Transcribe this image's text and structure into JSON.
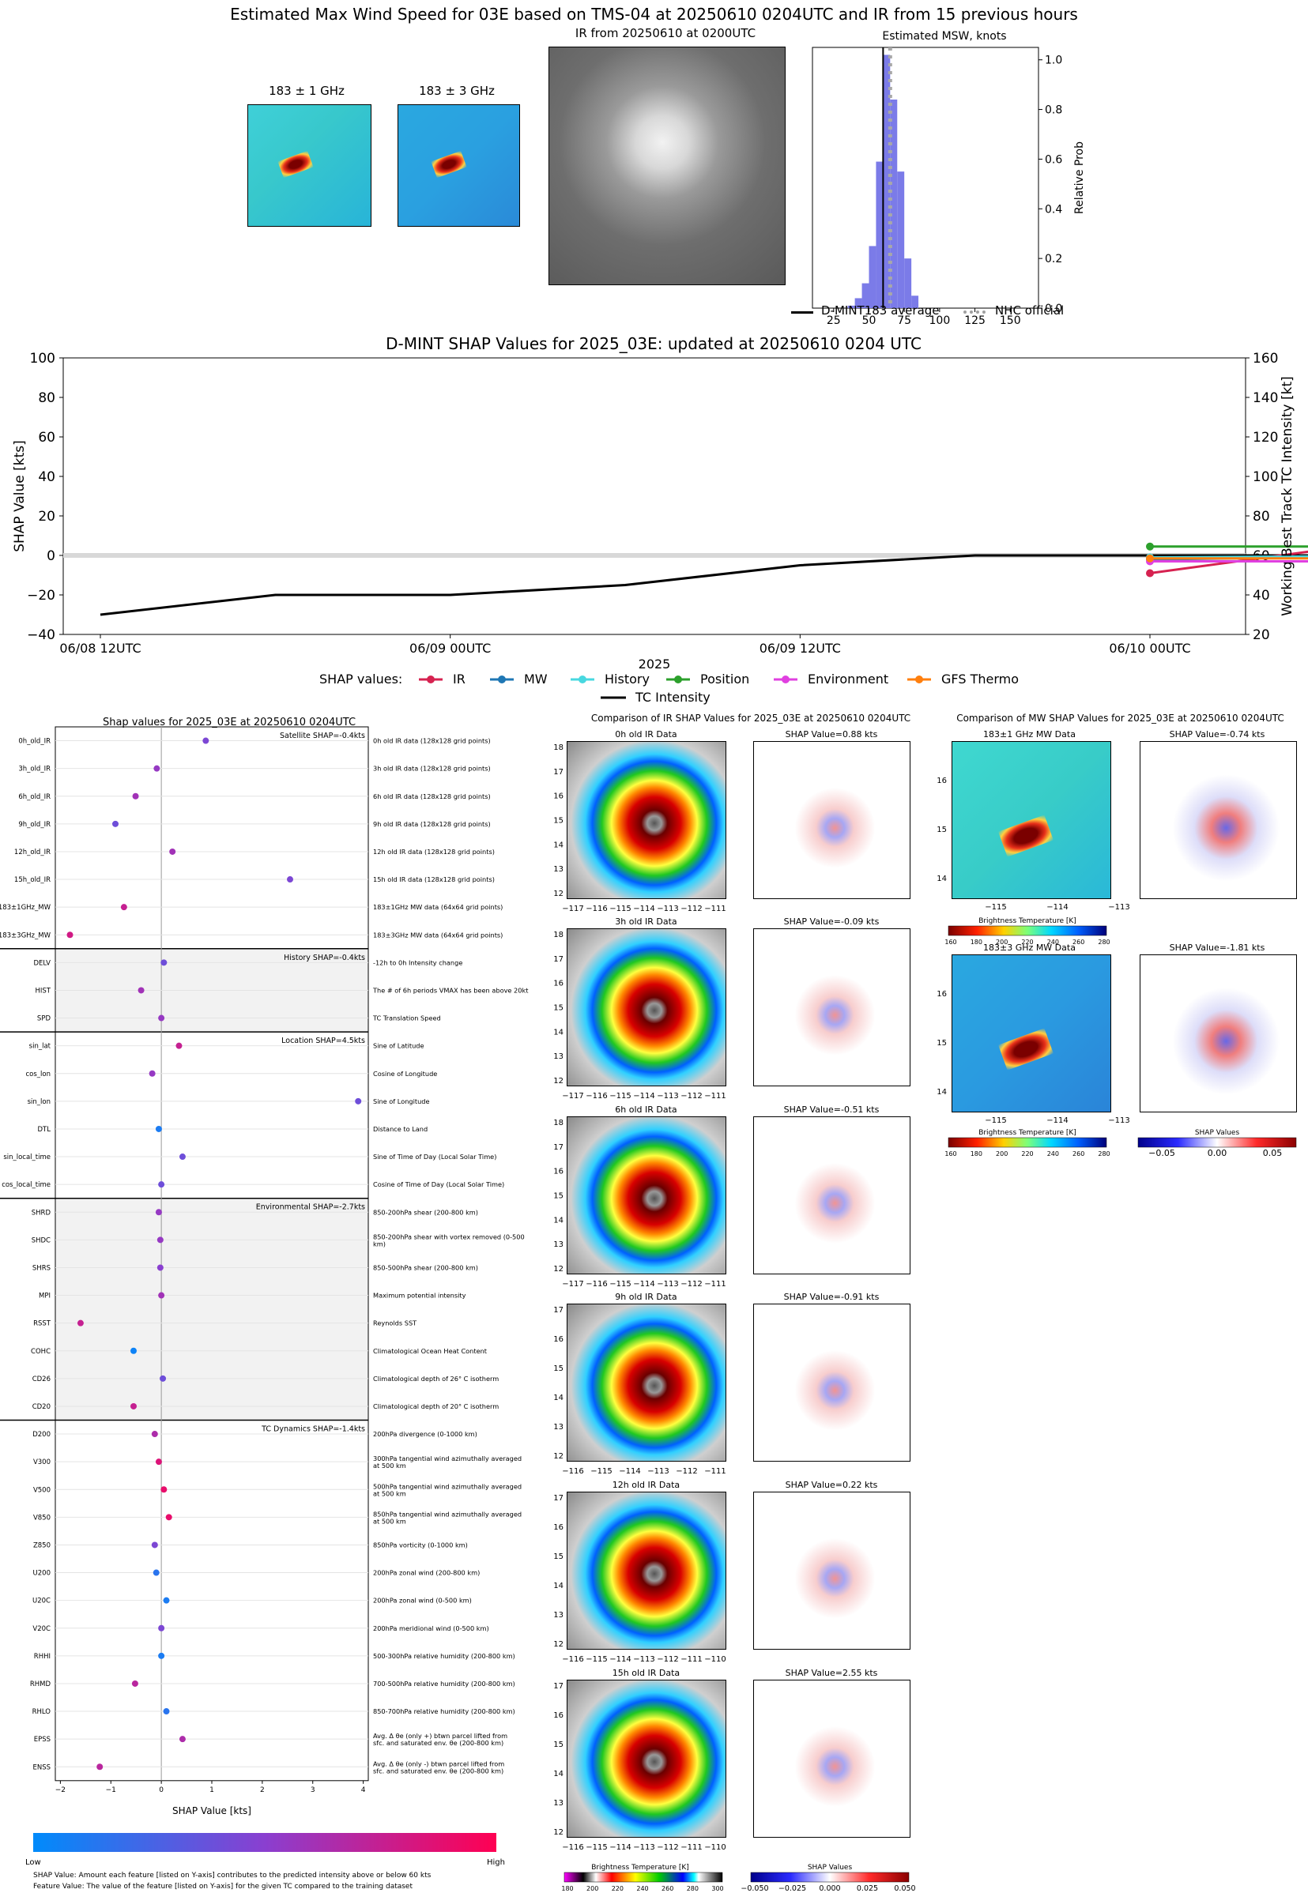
{
  "header": {
    "title": "Estimated Max Wind Speed for 03E based on TMS-04 at 20250610 0204UTC and IR from 15 previous hours",
    "mw1_title": "183 ± 1 GHz",
    "mw3_title": "183 ± 3 GHz",
    "ir_title": "IR from 20250610 at 0200UTC",
    "hist_title": "Estimated MSW, knots",
    "hist_ylabel": "Relative Prob",
    "legend_dmint": "D-MINT183 average",
    "legend_nhc": "NHC official"
  },
  "shap_time": {
    "title": "D-MINT SHAP Values for 2025_03E: updated at 20250610 0204 UTC",
    "ylabel_left": "SHAP Value [kts]",
    "ylabel_right": "Working Best Track TC Intensity [kt]",
    "xlabel": "2025",
    "legend_title": "SHAP values:",
    "legend_ir": "IR",
    "legend_mw": "MW",
    "legend_history": "History",
    "legend_position": "Position",
    "legend_env": "Environment",
    "legend_gfs": "GFS Thermo",
    "legend_tc": "TC Intensity"
  },
  "feature_panel": {
    "title": "Shap values for 2025_03E at 20250610 0204UTC",
    "xlabel": "SHAP Value [kts]",
    "groups": [
      "Satellite SHAP=-0.4kts",
      "History SHAP=-0.4kts",
      "Location SHAP=4.5kts",
      "Environmental SHAP=-2.7kts",
      "TC Dynamics SHAP=-1.4kts"
    ],
    "colorbar_low": "Low",
    "colorbar_high": "High",
    "footnote1": "SHAP Value: Amount each feature [listed on Y-axis] contributes to the predicted intensity above or below 60 kts",
    "footnote2": "Feature Value: The value of the feature [listed on Y-axis] for the given TC compared to the training dataset"
  },
  "ir_compare": {
    "title": "Comparison of IR SHAP Values for 2025_03E at 20250610 0204UTC",
    "cbar_label": "Brightness Temperature [K]",
    "shap_cbar_label": "SHAP Values",
    "cbar_ticks": [
      "180",
      "200",
      "220",
      "240",
      "260",
      "280",
      "300"
    ],
    "shap_cbar_ticks": [
      "−0.050",
      "−0.025",
      "0.000",
      "0.025",
      "0.050"
    ],
    "rows": [
      {
        "title": "0h old IR Data",
        "shap": "SHAP Value=0.88 kts",
        "yt": [
          "18",
          "17",
          "16",
          "15",
          "14",
          "13",
          "12"
        ],
        "xt": [
          "−117",
          "−116",
          "−115",
          "−114",
          "−113",
          "−112",
          "−111"
        ]
      },
      {
        "title": "3h old IR Data",
        "shap": "SHAP Value=-0.09 kts",
        "yt": [
          "18",
          "17",
          "16",
          "15",
          "14",
          "13",
          "12"
        ],
        "xt": [
          "−117",
          "−116",
          "−115",
          "−114",
          "−113",
          "−112",
          "−111"
        ]
      },
      {
        "title": "6h old IR Data",
        "shap": "SHAP Value=-0.51 kts",
        "yt": [
          "18",
          "17",
          "16",
          "15",
          "14",
          "13",
          "12"
        ],
        "xt": [
          "−117",
          "−116",
          "−115",
          "−114",
          "−113",
          "−112",
          "−111"
        ]
      },
      {
        "title": "9h old IR Data",
        "shap": "SHAP Value=-0.91 kts",
        "yt": [
          "17",
          "16",
          "15",
          "14",
          "13",
          "12"
        ],
        "xt": [
          "−116",
          "−115",
          "−114",
          "−113",
          "−112",
          "−111"
        ]
      },
      {
        "title": "12h old IR Data",
        "shap": "SHAP Value=0.22 kts",
        "yt": [
          "17",
          "16",
          "15",
          "14",
          "13",
          "12"
        ],
        "xt": [
          "−116",
          "−115",
          "−114",
          "−113",
          "−112",
          "−111",
          "−110"
        ]
      },
      {
        "title": "15h old IR Data",
        "shap": "SHAP Value=2.55 kts",
        "yt": [
          "17",
          "16",
          "15",
          "14",
          "13",
          "12"
        ],
        "xt": [
          "−116",
          "−115",
          "−114",
          "−113",
          "−112",
          "−111",
          "−110"
        ]
      }
    ]
  },
  "mw_compare": {
    "title": "Comparison of MW SHAP Values for 2025_03E at 20250610 0204UTC",
    "cbar_label": "Brightness Temperature [K]",
    "shap_cbar_label": "SHAP Values",
    "cbar_ticks": [
      "160",
      "180",
      "200",
      "220",
      "240",
      "260",
      "280"
    ],
    "shap_cbar_ticks": [
      "−0.05",
      "0.00",
      "0.05"
    ],
    "rows": [
      {
        "title": "183±1 GHz MW Data",
        "shap": "SHAP Value=-0.74 kts",
        "yt": [
          "16",
          "15",
          "14"
        ],
        "xt": [
          "−115",
          "−114",
          "−113"
        ]
      },
      {
        "title": "183±3 GHz MW Data",
        "shap": "SHAP Value=-1.81 kts",
        "yt": [
          "16",
          "15",
          "14"
        ],
        "xt": [
          "−115",
          "−114",
          "−113"
        ]
      }
    ]
  },
  "chart_data": [
    {
      "type": "bar",
      "title": "Estimated MSW, knots",
      "xlabel": "",
      "ylabel": "Relative Prob",
      "xlim": [
        10,
        170
      ],
      "ylim": [
        0,
        1.05
      ],
      "xticks": [
        25,
        50,
        75,
        100,
        125,
        150
      ],
      "yticks": [
        0.0,
        0.2,
        0.4,
        0.6,
        0.8,
        1.0
      ],
      "bin_centers": [
        37.5,
        42.5,
        47.5,
        52.5,
        57.5,
        62.5,
        67.5,
        72.5,
        77.5,
        82.5
      ],
      "values": [
        0.01,
        0.04,
        0.1,
        0.25,
        0.59,
        1.02,
        0.84,
        0.55,
        0.2,
        0.05
      ],
      "dmint_average": 60,
      "nhc_official": 65
    },
    {
      "type": "line",
      "title": "D-MINT SHAP Values for 2025_03E: updated at 20250610 0204 UTC",
      "xlabel": "2025",
      "ylabel": "SHAP Value [kts]",
      "ylabel_right": "Working Best Track TC Intensity [kt]",
      "ylim": [
        -40,
        100
      ],
      "ylim_right": [
        20,
        160
      ],
      "xticks": [
        "06/08 12UTC",
        "06/09 00UTC",
        "06/09 12UTC",
        "06/10 00UTC"
      ],
      "x_hours": [
        0,
        6,
        12,
        18,
        24,
        30,
        36,
        42
      ],
      "tc_intensity": [
        30,
        40,
        40,
        45,
        55,
        60,
        60,
        60
      ],
      "series": [
        {
          "name": "IR",
          "color": "#d62250",
          "x_hours": [
            36,
            42
          ],
          "values": [
            -9,
            3
          ]
        },
        {
          "name": "MW",
          "color": "#1f77b4",
          "x_hours": [
            36,
            42
          ],
          "values": [
            -2,
            -1
          ]
        },
        {
          "name": "History",
          "color": "#48d8e0",
          "x_hours": [
            36,
            42
          ],
          "values": [
            -1,
            -0.5
          ]
        },
        {
          "name": "Position",
          "color": "#2ca02c",
          "x_hours": [
            36,
            42
          ],
          "values": [
            4.5,
            4.5
          ]
        },
        {
          "name": "Environment",
          "color": "#e040e0",
          "x_hours": [
            36,
            42
          ],
          "values": [
            -3,
            -3
          ]
        },
        {
          "name": "GFS Thermo",
          "color": "#ff7f0e",
          "x_hours": [
            36,
            42
          ],
          "values": [
            -1.5,
            -1.5
          ]
        }
      ]
    },
    {
      "type": "scatter",
      "title": "Shap values for 2025_03E at 20250610 0204UTC",
      "xlabel": "SHAP Value [kts]",
      "xlim": [
        -2.1,
        4.1
      ],
      "xticks": [
        -2,
        -1,
        0,
        1,
        2,
        3,
        4
      ],
      "features": [
        {
          "name": "0h_old_IR",
          "desc": "0h old IR data (128x128 grid points)",
          "shap": 0.88,
          "fv": 0.45
        },
        {
          "name": "3h_old_IR",
          "desc": "3h old IR data (128x128 grid points)",
          "shap": -0.09,
          "fv": 0.55
        },
        {
          "name": "6h_old_IR",
          "desc": "6h old IR data (128x128 grid points)",
          "shap": -0.51,
          "fv": 0.6
        },
        {
          "name": "9h_old_IR",
          "desc": "9h old IR data (128x128 grid points)",
          "shap": -0.91,
          "fv": 0.4
        },
        {
          "name": "12h_old_IR",
          "desc": "12h old IR data (128x128 grid points)",
          "shap": 0.22,
          "fv": 0.6
        },
        {
          "name": "15h_old_IR",
          "desc": "15h old IR data (128x128 grid points)",
          "shap": 2.55,
          "fv": 0.45
        },
        {
          "name": "183±1GHz_MW",
          "desc": "183±1GHz MW data (64x64 grid points)",
          "shap": -0.74,
          "fv": 0.75
        },
        {
          "name": "183±3GHz_MW",
          "desc": "183±3GHz MW data (64x64 grid points)",
          "shap": -1.81,
          "fv": 0.8
        },
        {
          "name": "DELV",
          "desc": "-12h to 0h Intensity change",
          "shap": 0.05,
          "fv": 0.4
        },
        {
          "name": "HIST",
          "desc": "The # of 6h periods VMAX has been above 20kt",
          "shap": -0.4,
          "fv": 0.6
        },
        {
          "name": "SPD",
          "desc": "TC Translation Speed",
          "shap": 0.0,
          "fv": 0.55
        },
        {
          "name": "sin_lat",
          "desc": "Sine of Latitude",
          "shap": 0.35,
          "fv": 0.75
        },
        {
          "name": "cos_lon",
          "desc": "Cosine of Longitude",
          "shap": -0.18,
          "fv": 0.55
        },
        {
          "name": "sin_lon",
          "desc": "Sine of Longitude",
          "shap": 3.9,
          "fv": 0.4
        },
        {
          "name": "DTL",
          "desc": "Distance to Land",
          "shap": -0.05,
          "fv": 0.1
        },
        {
          "name": "sin_local_time",
          "desc": "Sine of Time of Day (Local Solar Time)",
          "shap": 0.42,
          "fv": 0.4
        },
        {
          "name": "cos_local_time",
          "desc": "Cosine of Time of Day (Local Solar Time)",
          "shap": 0.0,
          "fv": 0.4
        },
        {
          "name": "SHRD",
          "desc": "850-200hPa shear (200-800 km)",
          "shap": -0.05,
          "fv": 0.55
        },
        {
          "name": "SHDC",
          "desc": "850-200hPa shear with vortex removed (0-500 km)",
          "shap": -0.02,
          "fv": 0.55
        },
        {
          "name": "SHRS",
          "desc": "850-500hPa shear (200-800 km)",
          "shap": -0.02,
          "fv": 0.5
        },
        {
          "name": "MPI",
          "desc": "Maximum potential intensity",
          "shap": 0.0,
          "fv": 0.6
        },
        {
          "name": "RSST",
          "desc": "Reynolds SST",
          "shap": -1.6,
          "fv": 0.75
        },
        {
          "name": "COHC",
          "desc": "Climatological Ocean Heat Content",
          "shap": -0.55,
          "fv": 0.05
        },
        {
          "name": "CD26",
          "desc": "Climatological depth of 26° C isotherm",
          "shap": 0.03,
          "fv": 0.4
        },
        {
          "name": "CD20",
          "desc": "Climatological depth of 20° C isotherm",
          "shap": -0.55,
          "fv": 0.75
        },
        {
          "name": "D200",
          "desc": "200hPa divergence (0-1000 km)",
          "shap": -0.13,
          "fv": 0.65
        },
        {
          "name": "V300",
          "desc": "300hPa tangential wind azimuthally averaged at 500 km",
          "shap": -0.05,
          "fv": 0.85
        },
        {
          "name": "V500",
          "desc": "500hPa tangential wind azimuthally averaged at 500 km",
          "shap": 0.05,
          "fv": 0.9
        },
        {
          "name": "V850",
          "desc": "850hPa tangential wind azimuthally averaged at 500 km",
          "shap": 0.15,
          "fv": 0.9
        },
        {
          "name": "Z850",
          "desc": "850hPa vorticity (0-1000 km)",
          "shap": -0.13,
          "fv": 0.45
        },
        {
          "name": "U200",
          "desc": "200hPa zonal wind (200-800 km)",
          "shap": -0.1,
          "fv": 0.15
        },
        {
          "name": "U20C",
          "desc": "200hPa zonal wind (0-500 km)",
          "shap": 0.1,
          "fv": 0.1
        },
        {
          "name": "V20C",
          "desc": "200hPa meridional wind (0-500 km)",
          "shap": 0.0,
          "fv": 0.45
        },
        {
          "name": "RHHI",
          "desc": "500-300hPa relative humidity (200-800 km)",
          "shap": 0.0,
          "fv": 0.1
        },
        {
          "name": "RHMD",
          "desc": "700-500hPa relative humidity (200-800 km)",
          "shap": -0.52,
          "fv": 0.7
        },
        {
          "name": "RHLO",
          "desc": "850-700hPa relative humidity (200-800 km)",
          "shap": 0.1,
          "fv": 0.15
        },
        {
          "name": "EPSS",
          "desc": "Avg. Δ θe (only +) btwn parcel lifted from sfc. and saturated env. θe (200-800 km)",
          "shap": 0.42,
          "fv": 0.65
        },
        {
          "name": "ENSS",
          "desc": "Avg. Δ θe (only -) btwn parcel lifted from sfc. and saturated env. θe (200-800 km)",
          "shap": -1.22,
          "fv": 0.7
        }
      ]
    }
  ]
}
